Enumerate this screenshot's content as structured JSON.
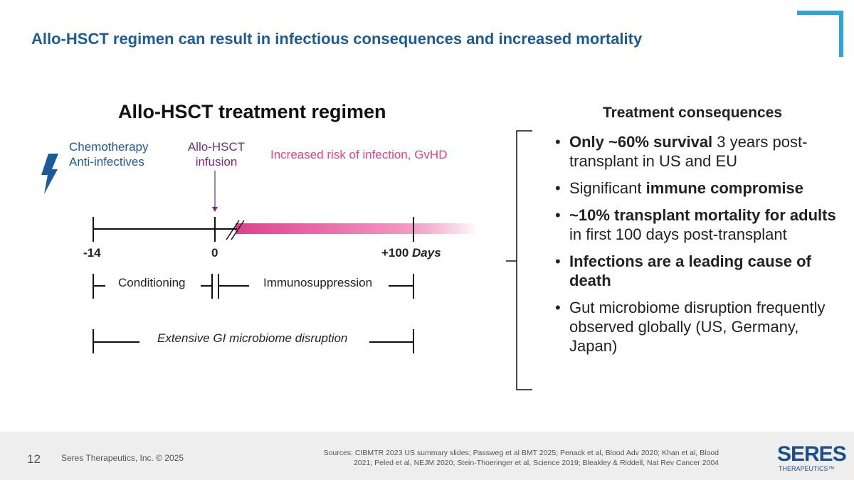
{
  "title": "Allo-HSCT regimen can result in infectious consequences and increased mortality",
  "left": {
    "heading": "Allo-HSCT treatment regimen",
    "chemo_line1": "Chemotherapy",
    "chemo_line2": "Anti-infectives",
    "infusion_line1": "Allo-HSCT",
    "infusion_line2": "infusion",
    "risk": "Increased risk of infection, GvHD",
    "tick_minus14": "-14",
    "tick_0": "0",
    "tick_100": "+100",
    "days": "Days",
    "conditioning": "Conditioning",
    "immunosuppression": "Immunosuppression",
    "gi": "Extensive GI microbiome disruption",
    "colors": {
      "blue": "#1c5b98",
      "purple": "#7b2a7f",
      "pink": "#e0408c"
    }
  },
  "right": {
    "heading": "Treatment consequences",
    "bullets": [
      {
        "b": "Only ~60% survival",
        "t": " 3 years post-transplant in US and EU"
      },
      {
        "t0": "Significant ",
        "b": "immune compromise"
      },
      {
        "b": "~10% transplant mortality for adults",
        "t": " in first 100 days post-transplant"
      },
      {
        "b": "Infections are a leading cause of death"
      },
      {
        "t": "Gut microbiome disruption frequently observed globally (US, Germany, Japan)"
      }
    ]
  },
  "footer": {
    "page": "12",
    "copyright": "Seres Therapeutics, Inc. © 2025",
    "sources_label": "Sources:",
    "sources": "CIBMTR 2023 US summary slides; Passweg et al BMT 2025; Penack et al, Blood Adv 2020; Khan et al, Blood 2021; Peled et al, NEJM 2020; Stein-Thoeringer et al, Science 2019; Bleakley & Riddell, Nat Rev Cancer 2004",
    "logo": "SERES",
    "logo_sub": "THERAPEUTICS™"
  }
}
